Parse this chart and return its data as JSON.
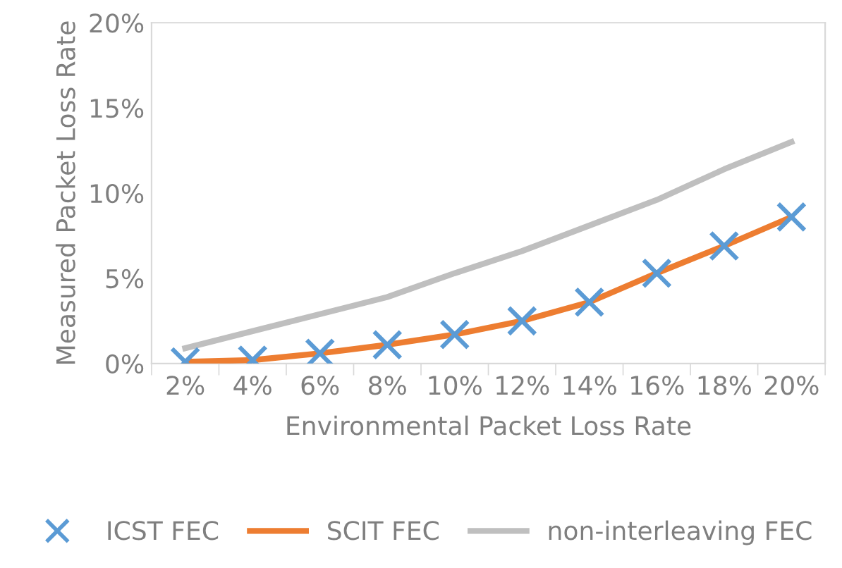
{
  "chart_data": {
    "type": "line",
    "xlabel": "Environmental Packet Loss Rate",
    "ylabel": "Measured Packet Loss Rate",
    "categories": [
      "2%",
      "4%",
      "6%",
      "8%",
      "10%",
      "12%",
      "14%",
      "16%",
      "18%",
      "20%"
    ],
    "series": [
      {
        "name": "ICST FEC",
        "type": "scatter",
        "marker": "cross",
        "color": "#5b9bd5",
        "values": [
          0.1,
          0.2,
          0.6,
          1.1,
          1.7,
          2.5,
          3.6,
          5.3,
          6.9,
          8.6
        ]
      },
      {
        "name": "SCIT FEC",
        "color": "#ed7d31",
        "values": [
          0.1,
          0.2,
          0.6,
          1.1,
          1.7,
          2.5,
          3.6,
          5.3,
          6.9,
          8.6
        ]
      },
      {
        "name": "non-interleaving FEC",
        "color": "#bfbfbf",
        "values": [
          0.9,
          1.9,
          2.9,
          3.9,
          5.3,
          6.6,
          8.1,
          9.6,
          11.4,
          13.0
        ]
      }
    ],
    "ylim": [
      0,
      20
    ],
    "yticks": [
      {
        "value": 0,
        "label": "0%"
      },
      {
        "value": 5,
        "label": "5%"
      },
      {
        "value": 10,
        "label": "10%"
      },
      {
        "value": 15,
        "label": "15%"
      },
      {
        "value": 20,
        "label": "20%"
      }
    ],
    "grid": false,
    "legend": "bottom"
  }
}
